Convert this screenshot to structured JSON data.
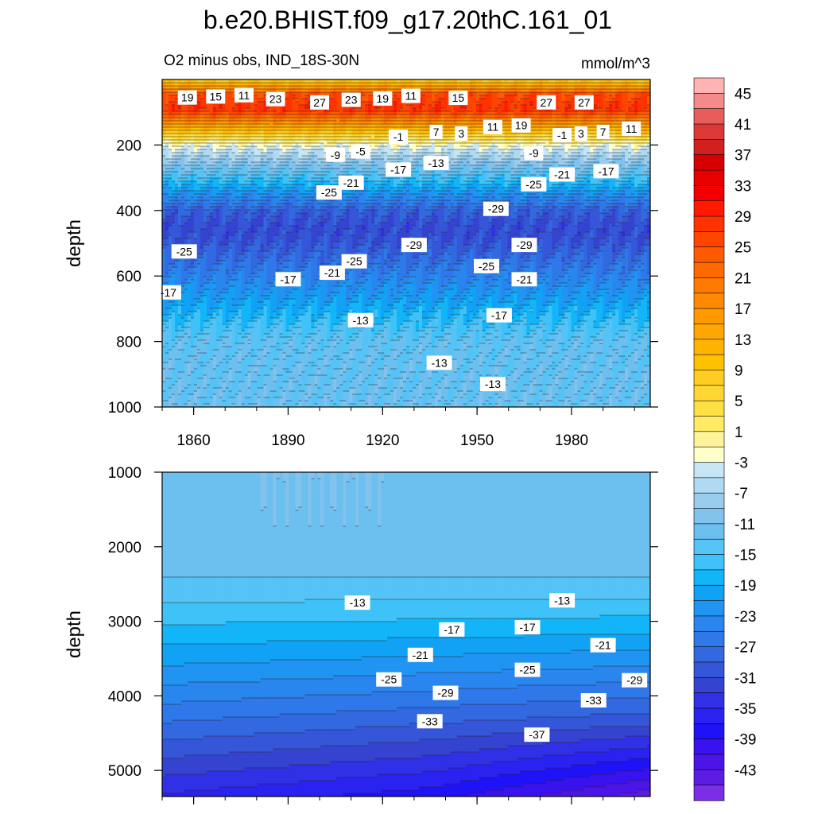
{
  "chart_data": {
    "type": "heatmap",
    "title": "b.e20.BHIST.f09_g17.20thC.161_01",
    "subtitle": "O2 minus obs, IND_18S-30N",
    "units": "mmol/m^3",
    "x_ticks": [
      "1860",
      "1890",
      "1920",
      "1950",
      "1980"
    ],
    "xlim": [
      1850,
      2005
    ],
    "colorbar": {
      "labels": [
        "45",
        "41",
        "37",
        "33",
        "29",
        "25",
        "21",
        "17",
        "13",
        "9",
        "5",
        "1",
        "-3",
        "-7",
        "-11",
        "-15",
        "-19",
        "-23",
        "-27",
        "-31",
        "-35",
        "-39",
        "-43"
      ],
      "levels": [
        47,
        45,
        43,
        41,
        39,
        37,
        35,
        33,
        31,
        29,
        27,
        25,
        23,
        21,
        19,
        17,
        15,
        13,
        11,
        9,
        7,
        5,
        3,
        1,
        -1,
        -3,
        -5,
        -7,
        -9,
        -11,
        -13,
        -15,
        -17,
        -19,
        -21,
        -23,
        -25,
        -27,
        -29,
        -31,
        -33,
        -35,
        -37,
        -39,
        -41,
        -43,
        -45
      ],
      "colors": [
        "#ffb3b3",
        "#f48a8a",
        "#e85c5c",
        "#dd3838",
        "#d02020",
        "#d60000",
        "#e60000",
        "#f20000",
        "#ff1a00",
        "#ff3300",
        "#ff4500",
        "#ff5a00",
        "#ff6a00",
        "#ff7a00",
        "#ff8a00",
        "#ff9900",
        "#ffa600",
        "#ffb300",
        "#ffc000",
        "#ffcc22",
        "#ffd633",
        "#ffe044",
        "#ffeb66",
        "#fff399",
        "#ffffcc",
        "#c6e6f5",
        "#b0daf2",
        "#99cdee",
        "#82c2ec",
        "#6cc0f0",
        "#55c3f6",
        "#3fc2f8",
        "#12b6f8",
        "#11a2f5",
        "#2094f3",
        "#2a86ef",
        "#2f78ea",
        "#3268e0",
        "#3556d8",
        "#3544d0",
        "#3030e6",
        "#2a22f0",
        "#1f12f6",
        "#3a12f0",
        "#4c15e8",
        "#5d1ce4",
        "#7b2ee6"
      ]
    },
    "panels": [
      {
        "name": "upper",
        "ylabel": "depth",
        "ylim": [
          0,
          1000
        ],
        "y_ticks": [
          "200",
          "400",
          "600",
          "800",
          "1000"
        ],
        "contour_labels": [
          {
            "text": "19",
            "x": 1858,
            "y": 55
          },
          {
            "text": "15",
            "x": 1867,
            "y": 52
          },
          {
            "text": "11",
            "x": 1876,
            "y": 48
          },
          {
            "text": "23",
            "x": 1886,
            "y": 60
          },
          {
            "text": "27",
            "x": 1900,
            "y": 70
          },
          {
            "text": "23",
            "x": 1910,
            "y": 62
          },
          {
            "text": "19",
            "x": 1920,
            "y": 58
          },
          {
            "text": "11",
            "x": 1929,
            "y": 50
          },
          {
            "text": "15",
            "x": 1944,
            "y": 56
          },
          {
            "text": "27",
            "x": 1972,
            "y": 70
          },
          {
            "text": "27",
            "x": 1984,
            "y": 70
          },
          {
            "text": "7",
            "x": 1937,
            "y": 160
          },
          {
            "text": "3",
            "x": 1945,
            "y": 165
          },
          {
            "text": "11",
            "x": 1955,
            "y": 145
          },
          {
            "text": "19",
            "x": 1964,
            "y": 140
          },
          {
            "text": "-1",
            "x": 1925,
            "y": 175
          },
          {
            "text": "-1",
            "x": 1977,
            "y": 170
          },
          {
            "text": "3",
            "x": 1983,
            "y": 165
          },
          {
            "text": "7",
            "x": 1990,
            "y": 160
          },
          {
            "text": "11",
            "x": 1999,
            "y": 150
          },
          {
            "text": "-9",
            "x": 1905,
            "y": 230
          },
          {
            "text": "-5",
            "x": 1913,
            "y": 220
          },
          {
            "text": "-9",
            "x": 1968,
            "y": 225
          },
          {
            "text": "-17",
            "x": 1925,
            "y": 275
          },
          {
            "text": "-13",
            "x": 1937,
            "y": 255
          },
          {
            "text": "-21",
            "x": 1977,
            "y": 290
          },
          {
            "text": "-17",
            "x": 1991,
            "y": 280
          },
          {
            "text": "-21",
            "x": 1910,
            "y": 315
          },
          {
            "text": "-25",
            "x": 1903,
            "y": 345
          },
          {
            "text": "-25",
            "x": 1968,
            "y": 320
          },
          {
            "text": "-29",
            "x": 1956,
            "y": 395
          },
          {
            "text": "-29",
            "x": 1930,
            "y": 505
          },
          {
            "text": "-29",
            "x": 1965,
            "y": 505
          },
          {
            "text": "-25",
            "x": 1857,
            "y": 525
          },
          {
            "text": "-25",
            "x": 1911,
            "y": 555
          },
          {
            "text": "-25",
            "x": 1953,
            "y": 570
          },
          {
            "text": "-21",
            "x": 1904,
            "y": 590
          },
          {
            "text": "-21",
            "x": 1965,
            "y": 610
          },
          {
            "text": "-17",
            "x": 1852,
            "y": 650
          },
          {
            "text": "-17",
            "x": 1890,
            "y": 610
          },
          {
            "text": "-17",
            "x": 1957,
            "y": 720
          },
          {
            "text": "-13",
            "x": 1913,
            "y": 735
          },
          {
            "text": "-13",
            "x": 1938,
            "y": 865
          },
          {
            "text": "-13",
            "x": 1955,
            "y": 930
          }
        ]
      },
      {
        "name": "lower",
        "ylabel": "depth",
        "ylim": [
          1000,
          5350
        ],
        "y_ticks": [
          "1000",
          "2000",
          "3000",
          "4000",
          "5000"
        ],
        "contour_labels": [
          {
            "text": "-13",
            "x": 1912,
            "y": 2750
          },
          {
            "text": "-13",
            "x": 1977,
            "y": 2720
          },
          {
            "text": "-17",
            "x": 1942,
            "y": 3110
          },
          {
            "text": "-17",
            "x": 1966,
            "y": 3080
          },
          {
            "text": "-21",
            "x": 1932,
            "y": 3450
          },
          {
            "text": "-21",
            "x": 1990,
            "y": 3320
          },
          {
            "text": "-25",
            "x": 1922,
            "y": 3780
          },
          {
            "text": "-25",
            "x": 1966,
            "y": 3650
          },
          {
            "text": "-29",
            "x": 1940,
            "y": 3960
          },
          {
            "text": "-29",
            "x": 2000,
            "y": 3790
          },
          {
            "text": "-33",
            "x": 1935,
            "y": 4340
          },
          {
            "text": "-33",
            "x": 1987,
            "y": 4060
          },
          {
            "text": "-37",
            "x": 1969,
            "y": 4520
          }
        ]
      }
    ]
  }
}
